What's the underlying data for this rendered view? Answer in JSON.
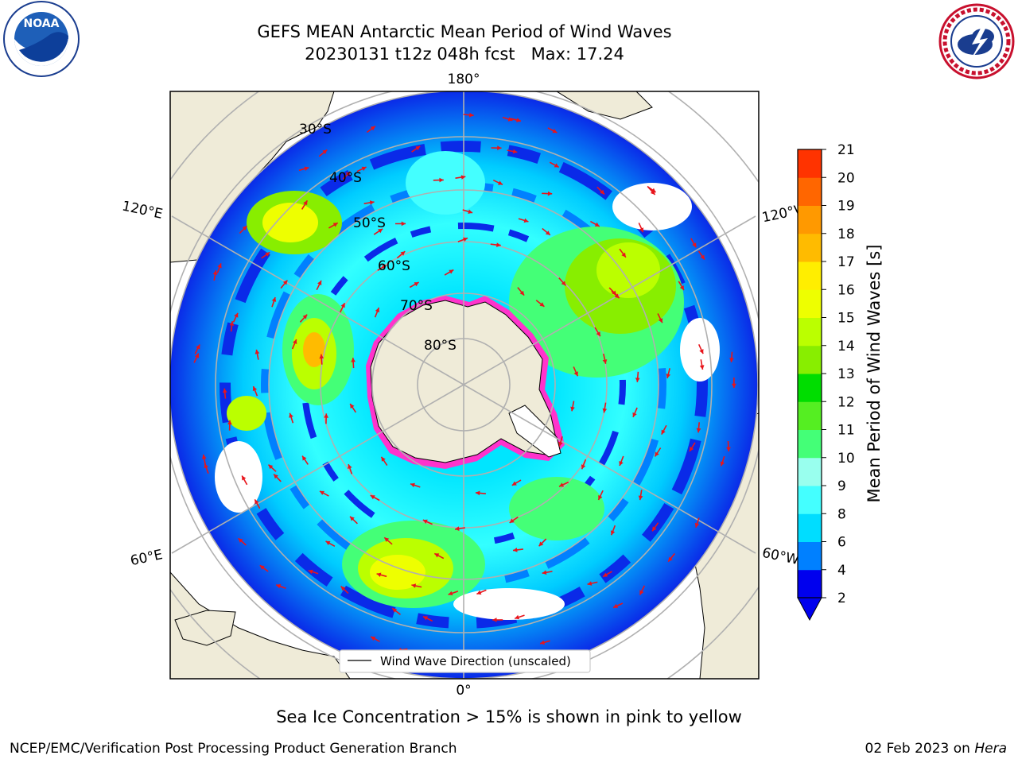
{
  "title": {
    "line1": "GEFS MEAN Antarctic Mean Period of Wind Waves",
    "line2": "20230131 t12z 048h fcst   Max: 17.24"
  },
  "logos": {
    "left": {
      "text": "NOAA",
      "icon": "noaa-logo-icon"
    },
    "right": {
      "text": "NATIONAL WEATHER SERVICE",
      "icon": "nws-logo-icon"
    }
  },
  "map": {
    "projection": "south-polar-stereographic",
    "longitude_labels": {
      "top": "180°",
      "bottom": "0°",
      "left_upper": "120°E",
      "left_lower": "60°E",
      "right_upper": "120°W",
      "right_lower": "60°W"
    },
    "latitude_labels": [
      "30°S",
      "40°S",
      "50°S",
      "60°S",
      "70°S",
      "80°S"
    ],
    "legend_label": "Wind Wave Direction (unscaled)",
    "colors": {
      "land": "#efebd8",
      "arrows": "#e8141b",
      "sea_ice": "#ff33cc"
    }
  },
  "colorbar": {
    "label": "Mean Period of Wind Waves [s]",
    "ticks": [
      "2",
      "4",
      "6",
      "8",
      "9",
      "10",
      "11",
      "12",
      "13",
      "14",
      "15",
      "16",
      "17",
      "18",
      "19",
      "20",
      "21"
    ],
    "colors": [
      "#0000ee",
      "#0080ff",
      "#00ddff",
      "#44ffff",
      "#99ffee",
      "#44ff77",
      "#55ee22",
      "#00dd00",
      "#88ee00",
      "#bbff00",
      "#eeff00",
      "#ffee00",
      "#ffbb00",
      "#ff9900",
      "#ff6600",
      "#ff3300"
    ],
    "extend": "min"
  },
  "notes": {
    "sea_ice": "Sea Ice Concentration > 15% is shown in pink to yellow",
    "credit": "NCEP/EMC/Verification Post Processing Product Generation Branch",
    "date_prefix": "02 Feb 2023 on",
    "date_machine": "Hera"
  }
}
